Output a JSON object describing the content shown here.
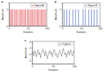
{
  "chart_data": [
    {
      "type": "stem",
      "title": "a",
      "xlabel": "Samples",
      "ylabel": "Amplitude",
      "x": [
        3,
        7,
        9,
        14,
        18,
        21,
        26,
        30,
        33,
        37,
        41,
        44,
        49,
        52,
        56,
        60,
        63,
        67,
        71,
        75,
        78,
        82,
        86,
        89,
        93,
        97
      ],
      "series": [
        {
          "name": "Signal A",
          "color": "#e0303a",
          "values": [
            1,
            1,
            1,
            1,
            1,
            1,
            1,
            1,
            1,
            1,
            1,
            1,
            1,
            1,
            1,
            1,
            1,
            1,
            1,
            1,
            1,
            1,
            1,
            1,
            1,
            1
          ]
        }
      ],
      "xlim": [
        0,
        100
      ],
      "ylim": [
        0,
        1.4
      ],
      "xticks": [
        0,
        50,
        100
      ],
      "yticks": [
        0,
        1
      ],
      "legend": "upper right"
    },
    {
      "type": "stem",
      "title": "b",
      "xlabel": "Samples",
      "ylabel": "Amplitude",
      "x": [
        5,
        12,
        19,
        28,
        35,
        43,
        55,
        61,
        70,
        77,
        84,
        92
      ],
      "series": [
        {
          "name": "Signal B",
          "color": "#3b5fc0",
          "values": [
            1,
            1,
            1,
            1,
            1,
            1,
            1,
            1,
            1,
            1,
            1,
            1
          ]
        }
      ],
      "xlim": [
        0,
        100
      ],
      "ylim": [
        0,
        1.4
      ],
      "xticks": [
        0,
        50,
        100
      ],
      "yticks": [
        0,
        1
      ],
      "legend": "upper right"
    },
    {
      "type": "line",
      "title": "c",
      "xlabel": "Samples",
      "ylabel": "Amplitude",
      "x": [
        0,
        2,
        4,
        6,
        8,
        10,
        12,
        14,
        16,
        18,
        20,
        22,
        24,
        26,
        28,
        30,
        32,
        34,
        36,
        38,
        40,
        42,
        44,
        46,
        48,
        50,
        52,
        54,
        56,
        58,
        60,
        62,
        64,
        66,
        68,
        70,
        72,
        74,
        76,
        78,
        80,
        82,
        84,
        86,
        88,
        90,
        92,
        94,
        96,
        98,
        100
      ],
      "series": [
        {
          "name": "Original",
          "color": "#555555",
          "values": [
            0.2,
            0.8,
            -0.5,
            1.1,
            0.3,
            -0.9,
            0.6,
            1.4,
            -0.2,
            0.5,
            -1.2,
            0.1,
            0.9,
            1.6,
            0.4,
            -0.6,
            1.0,
            0.2,
            -1.4,
            -0.3,
            0.7,
            1.2,
            -0.1,
            0.6,
            -0.8,
            0.3,
            1.5,
            0.9,
            -0.4,
            0.2,
            -1.1,
            -0.5,
            0.8,
            1.3,
            0.1,
            -0.7,
            0.5,
            1.8,
            0.6,
            -0.2,
            0.4,
            -1.0,
            0.2,
            1.1,
            -0.3,
            0.7,
            1.4,
            0.0,
            -0.6,
            0.9,
            0.3
          ]
        }
      ],
      "xlim": [
        0,
        100
      ],
      "ylim": [
        -3,
        4
      ],
      "xticks": [
        0,
        50,
        100
      ],
      "yticks": [
        -2,
        0,
        2,
        4
      ],
      "legend": "upper right"
    }
  ]
}
